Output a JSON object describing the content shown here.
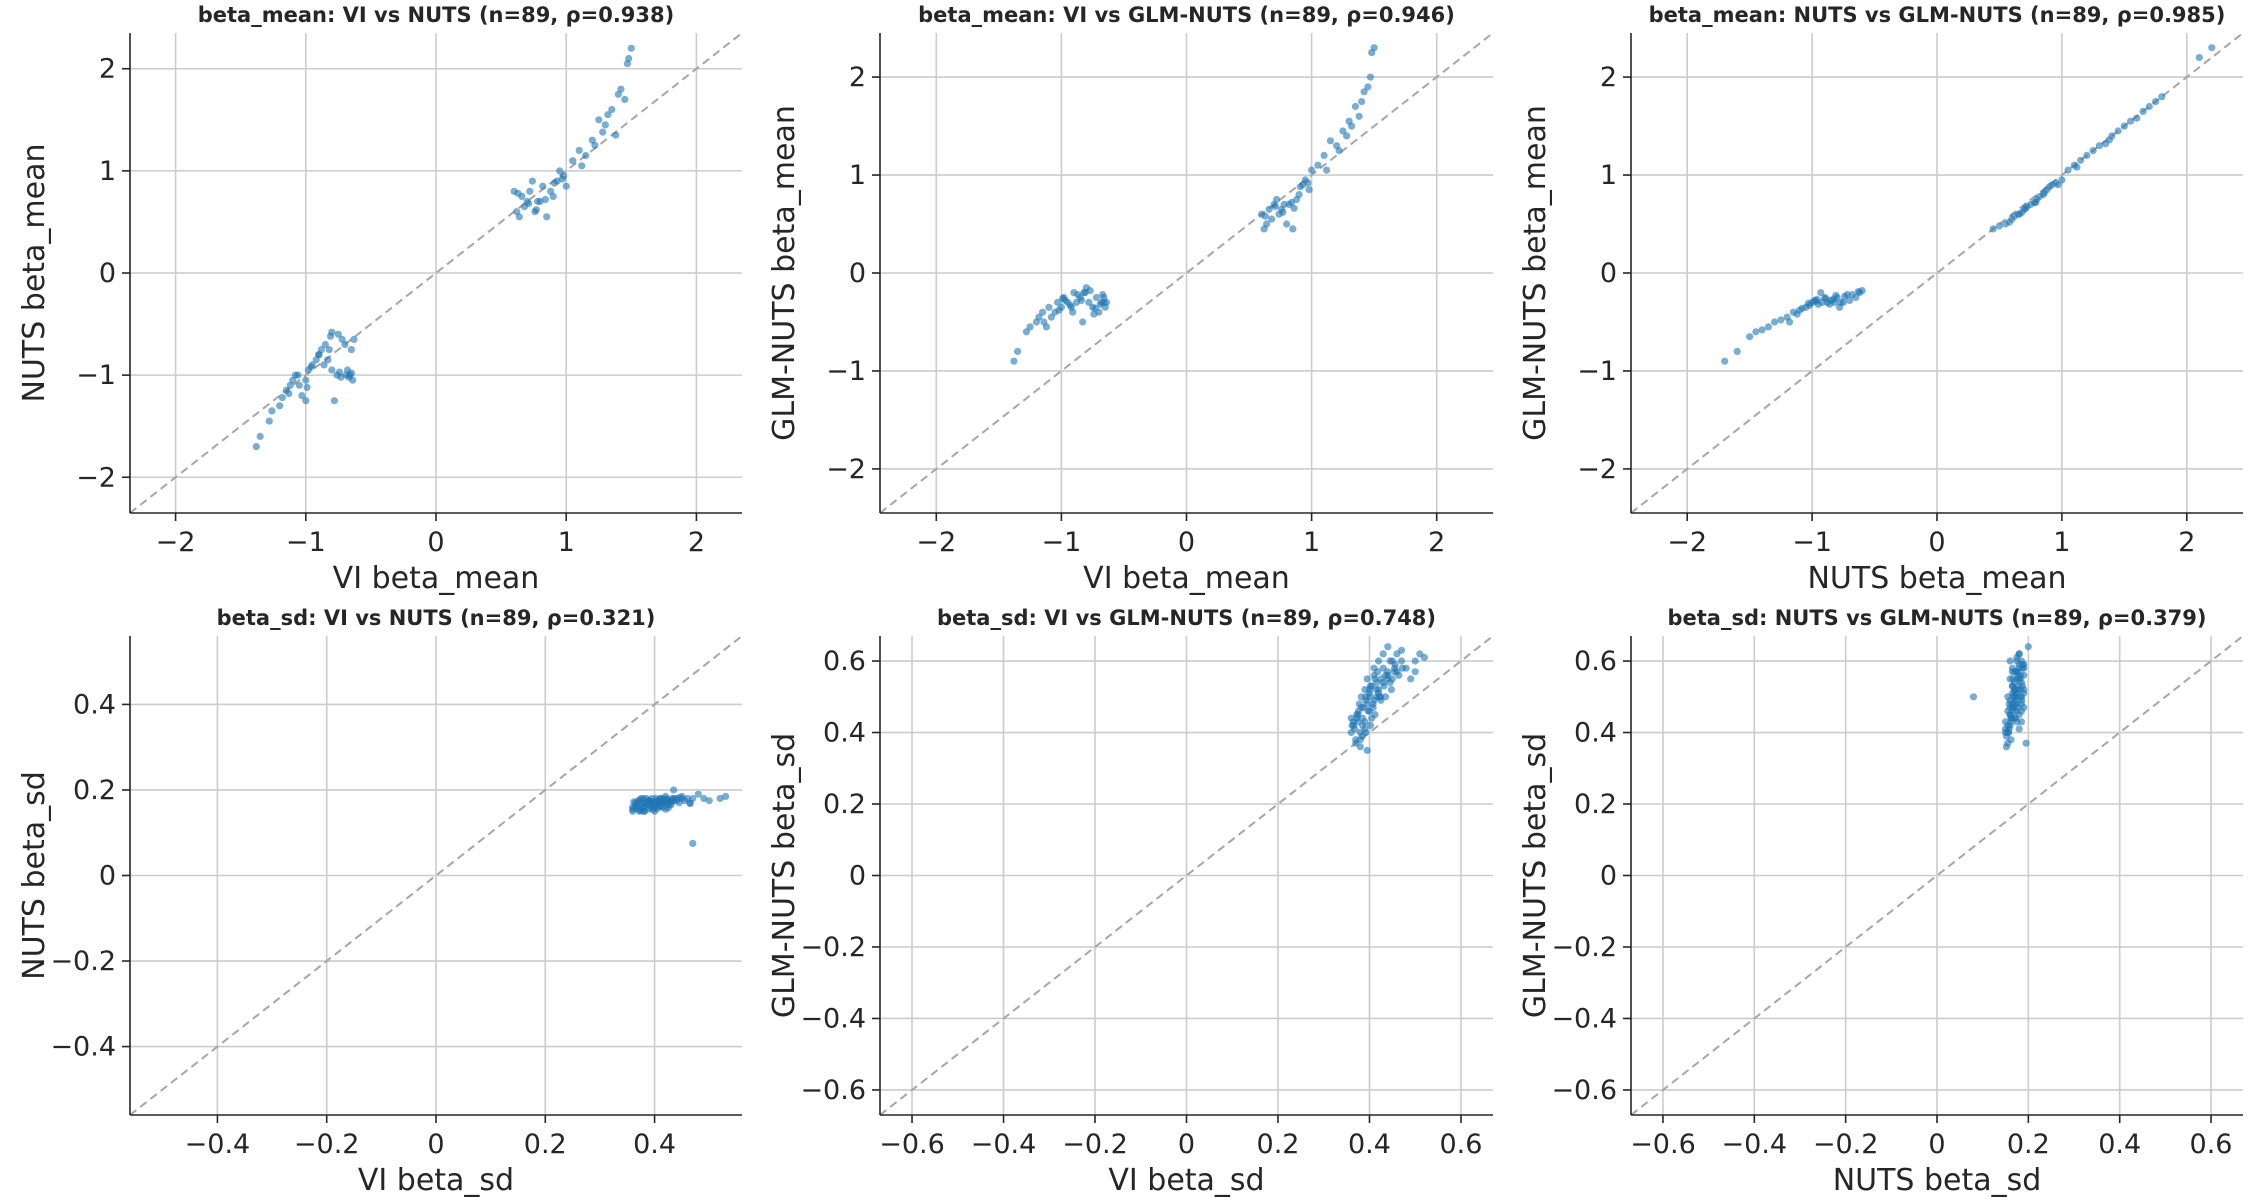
{
  "chart_data": [
    {
      "type": "scatter",
      "title": "beta_mean: VI vs NUTS (n=89, ρ=0.938)",
      "xlabel": "VI beta_mean",
      "ylabel": "NUTS beta_mean",
      "xlim": [
        -2.35,
        2.35
      ],
      "ylim": [
        -2.35,
        2.35
      ],
      "xticks": [
        -2,
        -1,
        0,
        1,
        2
      ],
      "yticks": [
        -2,
        -1,
        0,
        1,
        2
      ],
      "grid": true,
      "diagonal": true,
      "color": "#1f77b4",
      "x": [
        -1.38,
        -1.35,
        -1.28,
        -1.26,
        -1.2,
        -1.18,
        -1.15,
        -1.12,
        -1.1,
        -1.08,
        -1.05,
        -1.03,
        -1.0,
        -0.98,
        -0.95,
        -0.92,
        -0.9,
        -0.88,
        -0.85,
        -0.83,
        -0.8,
        -0.78,
        -0.75,
        -0.72,
        -0.7,
        -0.68,
        -0.66,
        -0.65,
        -0.64,
        -0.63,
        -1.06,
        -1.0,
        -0.96,
        -0.86,
        -0.81,
        -0.76,
        -0.73,
        -0.69,
        -0.9,
        -0.82,
        -0.74,
        -0.67,
        -1.13,
        -0.99,
        -0.8,
        -0.65,
        0.6,
        0.62,
        0.64,
        0.66,
        0.68,
        0.7,
        0.72,
        0.74,
        0.76,
        0.78,
        0.8,
        0.82,
        0.85,
        0.88,
        0.9,
        0.93,
        0.95,
        0.98,
        1.0,
        1.05,
        1.1,
        1.15,
        1.2,
        1.25,
        1.3,
        1.35,
        1.38,
        1.4,
        1.42,
        1.45,
        1.48,
        1.5,
        0.71,
        0.77,
        0.84,
        0.97,
        1.12,
        1.22,
        1.32,
        0.63,
        0.91,
        1.28,
        1.47
      ],
      "y": [
        -1.7,
        -1.6,
        -1.45,
        -1.35,
        -1.3,
        -1.22,
        -1.15,
        -1.1,
        -1.05,
        -1.0,
        -1.1,
        -1.2,
        -1.05,
        -0.95,
        -0.9,
        -0.85,
        -0.8,
        -0.75,
        -0.7,
        -0.85,
        -0.95,
        -1.25,
        -0.6,
        -0.65,
        -0.7,
        -0.95,
        -1.0,
        -0.75,
        -1.05,
        -0.65,
        -1.0,
        -1.25,
        -0.92,
        -0.9,
        -0.62,
        -1.0,
        -1.02,
        -1.0,
        -0.8,
        -0.75,
        -0.97,
        -1.02,
        -1.18,
        -1.12,
        -0.58,
        -0.98,
        0.8,
        0.6,
        0.55,
        0.75,
        0.65,
        0.7,
        0.8,
        0.9,
        0.6,
        0.7,
        0.7,
        0.85,
        0.55,
        0.8,
        0.75,
        0.9,
        1.0,
        0.95,
        0.85,
        1.1,
        1.2,
        1.15,
        1.3,
        1.5,
        1.45,
        1.6,
        1.35,
        1.75,
        1.8,
        1.7,
        2.1,
        2.2,
        0.68,
        0.62,
        0.72,
        0.92,
        1.05,
        1.25,
        1.55,
        0.78,
        0.88,
        1.38,
        2.05
      ]
    },
    {
      "type": "scatter",
      "title": "beta_mean: VI vs GLM-NUTS (n=89, ρ=0.946)",
      "xlabel": "VI beta_mean",
      "ylabel": "GLM-NUTS beta_mean",
      "xlim": [
        -2.45,
        2.45
      ],
      "ylim": [
        -2.45,
        2.45
      ],
      "xticks": [
        -2,
        -1,
        0,
        1,
        2
      ],
      "yticks": [
        -2,
        -1,
        0,
        1,
        2
      ],
      "grid": true,
      "diagonal": true,
      "color": "#1f77b4",
      "x": [
        -1.38,
        -1.35,
        -1.28,
        -1.25,
        -1.2,
        -1.18,
        -1.15,
        -1.12,
        -1.1,
        -1.08,
        -1.05,
        -1.03,
        -1.0,
        -0.98,
        -0.95,
        -0.92,
        -0.9,
        -0.88,
        -0.85,
        -0.82,
        -0.8,
        -0.78,
        -0.75,
        -0.72,
        -0.7,
        -0.68,
        -0.66,
        -0.65,
        -0.64,
        -1.02,
        -0.97,
        -0.93,
        -0.87,
        -0.83,
        -0.77,
        -0.73,
        -0.69,
        -0.91,
        -0.84,
        -0.74,
        -0.67,
        -1.14,
        -0.99,
        -0.81,
        -0.66,
        0.6,
        0.62,
        0.64,
        0.66,
        0.68,
        0.7,
        0.72,
        0.74,
        0.76,
        0.78,
        0.8,
        0.82,
        0.85,
        0.88,
        0.9,
        0.93,
        0.95,
        0.98,
        1.0,
        1.05,
        1.1,
        1.15,
        1.2,
        1.25,
        1.3,
        1.35,
        1.38,
        1.4,
        1.42,
        1.45,
        1.48,
        1.5,
        0.71,
        0.77,
        0.84,
        0.97,
        1.12,
        1.22,
        1.32,
        0.63,
        0.91,
        1.28,
        1.47,
        0.86
      ],
      "y": [
        -0.9,
        -0.8,
        -0.6,
        -0.55,
        -0.5,
        -0.45,
        -0.4,
        -0.55,
        -0.35,
        -0.45,
        -0.4,
        -0.3,
        -0.35,
        -0.25,
        -0.3,
        -0.35,
        -0.2,
        -0.3,
        -0.25,
        -0.2,
        -0.15,
        -0.3,
        -0.35,
        -0.25,
        -0.4,
        -0.3,
        -0.25,
        -0.35,
        -0.3,
        -0.38,
        -0.28,
        -0.33,
        -0.22,
        -0.5,
        -0.18,
        -0.36,
        -0.32,
        -0.4,
        -0.28,
        -0.42,
        -0.22,
        -0.5,
        -0.26,
        -0.2,
        -0.3,
        0.6,
        0.45,
        0.5,
        0.65,
        0.55,
        0.7,
        0.75,
        0.6,
        0.65,
        0.7,
        0.5,
        0.7,
        0.45,
        0.75,
        0.8,
        0.9,
        0.95,
        0.85,
        1.05,
        1.1,
        1.2,
        1.35,
        1.3,
        1.45,
        1.55,
        1.7,
        1.6,
        1.75,
        1.85,
        1.9,
        2.25,
        2.3,
        0.68,
        0.62,
        0.72,
        0.92,
        1.05,
        1.25,
        1.5,
        0.58,
        0.88,
        1.4,
        2.0,
        0.66
      ]
    },
    {
      "type": "scatter",
      "title": "beta_mean: NUTS vs GLM-NUTS (n=89, ρ=0.985)",
      "xlabel": "NUTS beta_mean",
      "ylabel": "GLM-NUTS beta_mean",
      "xlim": [
        -2.45,
        2.45
      ],
      "ylim": [
        -2.45,
        2.45
      ],
      "xticks": [
        -2,
        -1,
        0,
        1,
        2
      ],
      "yticks": [
        -2,
        -1,
        0,
        1,
        2
      ],
      "grid": true,
      "diagonal": true,
      "color": "#1f77b4",
      "x": [
        -1.7,
        -1.6,
        -1.5,
        -1.45,
        -1.4,
        -1.35,
        -1.3,
        -1.25,
        -1.2,
        -1.15,
        -1.1,
        -1.05,
        -1.0,
        -0.98,
        -0.95,
        -0.92,
        -0.9,
        -0.88,
        -0.85,
        -0.82,
        -0.8,
        -0.78,
        -0.75,
        -0.72,
        -0.7,
        -0.65,
        -0.62,
        -0.6,
        -1.12,
        -1.08,
        -1.02,
        -0.96,
        -0.93,
        -0.86,
        -0.83,
        -0.77,
        -0.74,
        -0.68,
        -1.18,
        -1.03,
        -0.97,
        -0.89,
        -0.81,
        -0.63,
        0.45,
        0.5,
        0.55,
        0.6,
        0.62,
        0.65,
        0.68,
        0.7,
        0.72,
        0.75,
        0.78,
        0.8,
        0.82,
        0.85,
        0.88,
        0.9,
        0.92,
        0.95,
        1.0,
        1.05,
        1.1,
        1.15,
        1.2,
        1.25,
        1.3,
        1.35,
        1.4,
        1.45,
        1.5,
        1.55,
        1.6,
        1.65,
        1.7,
        1.75,
        1.8,
        2.1,
        2.2,
        0.58,
        0.66,
        0.71,
        0.79,
        0.86,
        0.97,
        1.12,
        1.38
      ],
      "y": [
        -0.9,
        -0.8,
        -0.65,
        -0.6,
        -0.58,
        -0.55,
        -0.5,
        -0.48,
        -0.45,
        -0.4,
        -0.38,
        -0.35,
        -0.3,
        -0.28,
        -0.32,
        -0.3,
        -0.25,
        -0.3,
        -0.28,
        -0.3,
        -0.25,
        -0.35,
        -0.3,
        -0.22,
        -0.28,
        -0.25,
        -0.2,
        -0.18,
        -0.42,
        -0.36,
        -0.33,
        -0.27,
        -0.2,
        -0.32,
        -0.27,
        -0.3,
        -0.24,
        -0.22,
        -0.5,
        -0.31,
        -0.29,
        -0.26,
        -0.23,
        -0.19,
        0.45,
        0.48,
        0.5,
        0.55,
        0.58,
        0.6,
        0.62,
        0.65,
        0.68,
        0.7,
        0.72,
        0.75,
        0.78,
        0.8,
        0.85,
        0.88,
        0.9,
        0.92,
        0.95,
        1.05,
        1.1,
        1.15,
        1.2,
        1.25,
        1.3,
        1.32,
        1.4,
        1.45,
        1.5,
        1.55,
        1.58,
        1.65,
        1.7,
        1.75,
        1.8,
        2.2,
        2.3,
        0.52,
        0.6,
        0.66,
        0.72,
        0.82,
        0.9,
        1.08,
        1.36
      ]
    },
    {
      "type": "scatter",
      "title": "beta_sd: VI vs NUTS (n=89, ρ=0.321)",
      "xlabel": "VI beta_sd",
      "ylabel": "NUTS beta_sd",
      "xlim": [
        -0.56,
        0.56
      ],
      "ylim": [
        -0.56,
        0.56
      ],
      "xticks": [
        -0.4,
        -0.2,
        0.0,
        0.2,
        0.4
      ],
      "yticks": [
        -0.4,
        -0.2,
        0.0,
        0.2,
        0.4
      ],
      "grid": true,
      "diagonal": true,
      "color": "#1f77b4",
      "x": [
        0.36,
        0.365,
        0.37,
        0.372,
        0.375,
        0.378,
        0.38,
        0.382,
        0.385,
        0.387,
        0.39,
        0.392,
        0.395,
        0.397,
        0.4,
        0.402,
        0.405,
        0.407,
        0.41,
        0.412,
        0.415,
        0.417,
        0.42,
        0.422,
        0.425,
        0.427,
        0.43,
        0.432,
        0.435,
        0.44,
        0.445,
        0.45,
        0.455,
        0.46,
        0.465,
        0.47,
        0.48,
        0.49,
        0.5,
        0.52,
        0.53,
        0.365,
        0.37,
        0.375,
        0.38,
        0.385,
        0.39,
        0.395,
        0.4,
        0.405,
        0.41,
        0.415,
        0.42,
        0.425,
        0.43,
        0.435,
        0.44,
        0.45,
        0.36,
        0.37,
        0.38,
        0.39,
        0.4,
        0.41,
        0.42,
        0.43,
        0.385,
        0.395,
        0.405,
        0.415,
        0.375,
        0.4,
        0.425,
        0.445,
        0.465,
        0.36,
        0.362,
        0.368,
        0.374,
        0.38,
        0.386,
        0.392,
        0.398,
        0.404,
        0.41,
        0.416,
        0.422,
        0.47,
        0.435
      ],
      "y": [
        0.15,
        0.16,
        0.17,
        0.15,
        0.18,
        0.16,
        0.17,
        0.15,
        0.18,
        0.165,
        0.175,
        0.16,
        0.18,
        0.155,
        0.17,
        0.18,
        0.165,
        0.175,
        0.17,
        0.18,
        0.16,
        0.175,
        0.17,
        0.18,
        0.165,
        0.175,
        0.17,
        0.18,
        0.175,
        0.18,
        0.17,
        0.185,
        0.175,
        0.18,
        0.17,
        0.18,
        0.19,
        0.18,
        0.175,
        0.18,
        0.185,
        0.17,
        0.175,
        0.165,
        0.18,
        0.17,
        0.175,
        0.165,
        0.16,
        0.175,
        0.18,
        0.17,
        0.185,
        0.17,
        0.175,
        0.18,
        0.175,
        0.18,
        0.155,
        0.155,
        0.15,
        0.155,
        0.15,
        0.16,
        0.155,
        0.165,
        0.172,
        0.168,
        0.172,
        0.178,
        0.152,
        0.162,
        0.158,
        0.182,
        0.168,
        0.16,
        0.172,
        0.164,
        0.176,
        0.158,
        0.166,
        0.174,
        0.168,
        0.156,
        0.164,
        0.17,
        0.178,
        0.075,
        0.2
      ]
    },
    {
      "type": "scatter",
      "title": "beta_sd: VI vs GLM-NUTS (n=89, ρ=0.748)",
      "xlabel": "VI beta_sd",
      "ylabel": "GLM-NUTS beta_sd",
      "xlim": [
        -0.67,
        0.67
      ],
      "ylim": [
        -0.67,
        0.67
      ],
      "xticks": [
        -0.6,
        -0.4,
        -0.2,
        0.0,
        0.2,
        0.4,
        0.6
      ],
      "yticks": [
        -0.6,
        -0.4,
        -0.2,
        0.0,
        0.2,
        0.4,
        0.6
      ],
      "grid": true,
      "diagonal": true,
      "color": "#1f77b4",
      "x": [
        0.36,
        0.365,
        0.37,
        0.372,
        0.375,
        0.378,
        0.38,
        0.382,
        0.385,
        0.387,
        0.39,
        0.392,
        0.395,
        0.397,
        0.4,
        0.402,
        0.405,
        0.408,
        0.41,
        0.412,
        0.415,
        0.418,
        0.42,
        0.425,
        0.43,
        0.435,
        0.44,
        0.445,
        0.45,
        0.455,
        0.46,
        0.47,
        0.48,
        0.49,
        0.5,
        0.52,
        0.36,
        0.368,
        0.376,
        0.384,
        0.392,
        0.4,
        0.408,
        0.416,
        0.424,
        0.432,
        0.44,
        0.448,
        0.456,
        0.464,
        0.472,
        0.365,
        0.375,
        0.385,
        0.395,
        0.405,
        0.415,
        0.425,
        0.435,
        0.445,
        0.455,
        0.37,
        0.38,
        0.39,
        0.4,
        0.41,
        0.42,
        0.43,
        0.44,
        0.362,
        0.372,
        0.382,
        0.392,
        0.402,
        0.412,
        0.422,
        0.38,
        0.39,
        0.4,
        0.41,
        0.42,
        0.43,
        0.44,
        0.45,
        0.46,
        0.47,
        0.5,
        0.51,
        0.395
      ],
      "y": [
        0.4,
        0.42,
        0.38,
        0.45,
        0.43,
        0.48,
        0.36,
        0.5,
        0.44,
        0.47,
        0.52,
        0.4,
        0.55,
        0.46,
        0.5,
        0.42,
        0.53,
        0.48,
        0.56,
        0.45,
        0.5,
        0.57,
        0.52,
        0.55,
        0.58,
        0.5,
        0.56,
        0.6,
        0.55,
        0.58,
        0.57,
        0.6,
        0.58,
        0.55,
        0.57,
        0.61,
        0.44,
        0.41,
        0.46,
        0.39,
        0.49,
        0.51,
        0.47,
        0.54,
        0.5,
        0.53,
        0.57,
        0.52,
        0.59,
        0.56,
        0.58,
        0.43,
        0.45,
        0.42,
        0.48,
        0.44,
        0.52,
        0.49,
        0.56,
        0.54,
        0.57,
        0.37,
        0.4,
        0.43,
        0.46,
        0.49,
        0.51,
        0.54,
        0.55,
        0.42,
        0.44,
        0.47,
        0.5,
        0.53,
        0.55,
        0.5,
        0.38,
        0.41,
        0.52,
        0.58,
        0.6,
        0.62,
        0.64,
        0.6,
        0.62,
        0.63,
        0.6,
        0.62,
        0.35
      ]
    },
    {
      "type": "scatter",
      "title": "beta_sd: NUTS vs GLM-NUTS (n=89, ρ=0.379)",
      "xlabel": "NUTS beta_sd",
      "ylabel": "GLM-NUTS beta_sd",
      "xlim": [
        -0.67,
        0.67
      ],
      "ylim": [
        -0.67,
        0.67
      ],
      "xticks": [
        -0.6,
        -0.4,
        -0.2,
        0.0,
        0.2,
        0.4,
        0.6
      ],
      "yticks": [
        -0.6,
        -0.4,
        -0.2,
        0.0,
        0.2,
        0.4,
        0.6
      ],
      "grid": true,
      "diagonal": true,
      "color": "#1f77b4",
      "x": [
        0.15,
        0.155,
        0.16,
        0.162,
        0.165,
        0.167,
        0.17,
        0.172,
        0.175,
        0.177,
        0.18,
        0.182,
        0.185,
        0.187,
        0.19,
        0.15,
        0.155,
        0.16,
        0.165,
        0.17,
        0.175,
        0.18,
        0.185,
        0.19,
        0.152,
        0.158,
        0.163,
        0.168,
        0.173,
        0.178,
        0.183,
        0.188,
        0.16,
        0.165,
        0.17,
        0.175,
        0.18,
        0.185,
        0.155,
        0.16,
        0.165,
        0.17,
        0.175,
        0.18,
        0.185,
        0.19,
        0.152,
        0.157,
        0.162,
        0.167,
        0.172,
        0.177,
        0.182,
        0.187,
        0.16,
        0.17,
        0.18,
        0.19,
        0.165,
        0.175,
        0.185,
        0.155,
        0.17,
        0.18,
        0.16,
        0.175,
        0.19,
        0.15,
        0.158,
        0.166,
        0.174,
        0.182,
        0.19,
        0.162,
        0.17,
        0.178,
        0.186,
        0.155,
        0.165,
        0.175,
        0.185,
        0.16,
        0.17,
        0.18,
        0.165,
        0.175,
        0.08,
        0.2,
        0.195
      ],
      "y": [
        0.4,
        0.42,
        0.45,
        0.38,
        0.48,
        0.5,
        0.52,
        0.44,
        0.55,
        0.47,
        0.58,
        0.5,
        0.6,
        0.53,
        0.56,
        0.43,
        0.46,
        0.49,
        0.51,
        0.54,
        0.57,
        0.59,
        0.48,
        0.52,
        0.39,
        0.41,
        0.44,
        0.47,
        0.5,
        0.53,
        0.56,
        0.59,
        0.55,
        0.58,
        0.48,
        0.61,
        0.45,
        0.5,
        0.37,
        0.42,
        0.47,
        0.52,
        0.57,
        0.62,
        0.46,
        0.51,
        0.36,
        0.4,
        0.43,
        0.46,
        0.49,
        0.52,
        0.55,
        0.58,
        0.6,
        0.44,
        0.41,
        0.47,
        0.53,
        0.43,
        0.54,
        0.5,
        0.57,
        0.62,
        0.45,
        0.51,
        0.59,
        0.41,
        0.48,
        0.55,
        0.46,
        0.52,
        0.58,
        0.44,
        0.5,
        0.56,
        0.49,
        0.4,
        0.53,
        0.6,
        0.43,
        0.47,
        0.51,
        0.55,
        0.57,
        0.48,
        0.5,
        0.64,
        0.37
      ]
    }
  ]
}
